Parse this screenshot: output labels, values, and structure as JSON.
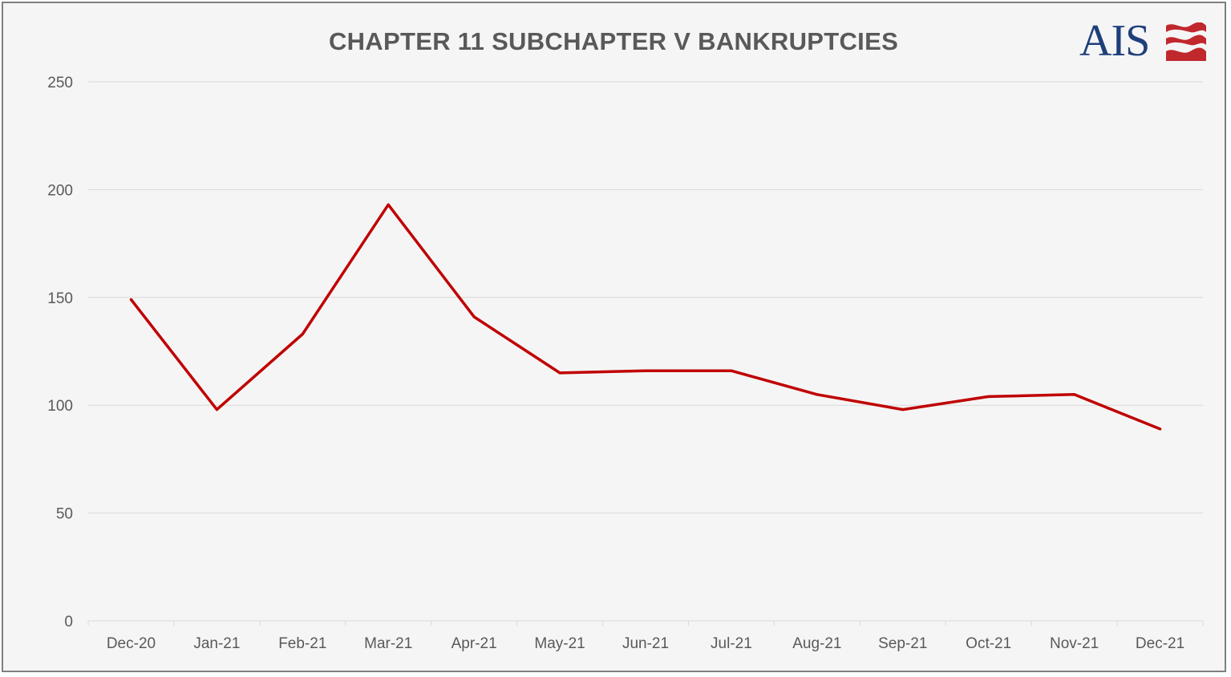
{
  "chart_data": {
    "type": "line",
    "title": "CHAPTER 11 SUBCHAPTER V BANKRUPTCIES",
    "xlabel": "",
    "ylabel": "",
    "categories": [
      "Dec-20",
      "Jan-21",
      "Feb-21",
      "Mar-21",
      "Apr-21",
      "May-21",
      "Jun-21",
      "Jul-21",
      "Aug-21",
      "Sep-21",
      "Oct-21",
      "Nov-21",
      "Dec-21"
    ],
    "series": [
      {
        "values": [
          149,
          98,
          133,
          193,
          141,
          115,
          116,
          116,
          105,
          98,
          104,
          105,
          89
        ],
        "color": "#c00000"
      }
    ],
    "ylim": [
      0,
      250
    ],
    "yticks": [
      "0",
      "50",
      "100",
      "150",
      "200",
      "250"
    ],
    "grid": true,
    "legend": "none"
  },
  "branding": {
    "logo_text": "AIS",
    "logo_color": "#1f3f7a",
    "wave_color": "#c0282d"
  },
  "colors": {
    "background": "#f5f5f5",
    "border": "#7f7f7f",
    "gridline": "#d9d9d9",
    "text": "#595959"
  }
}
